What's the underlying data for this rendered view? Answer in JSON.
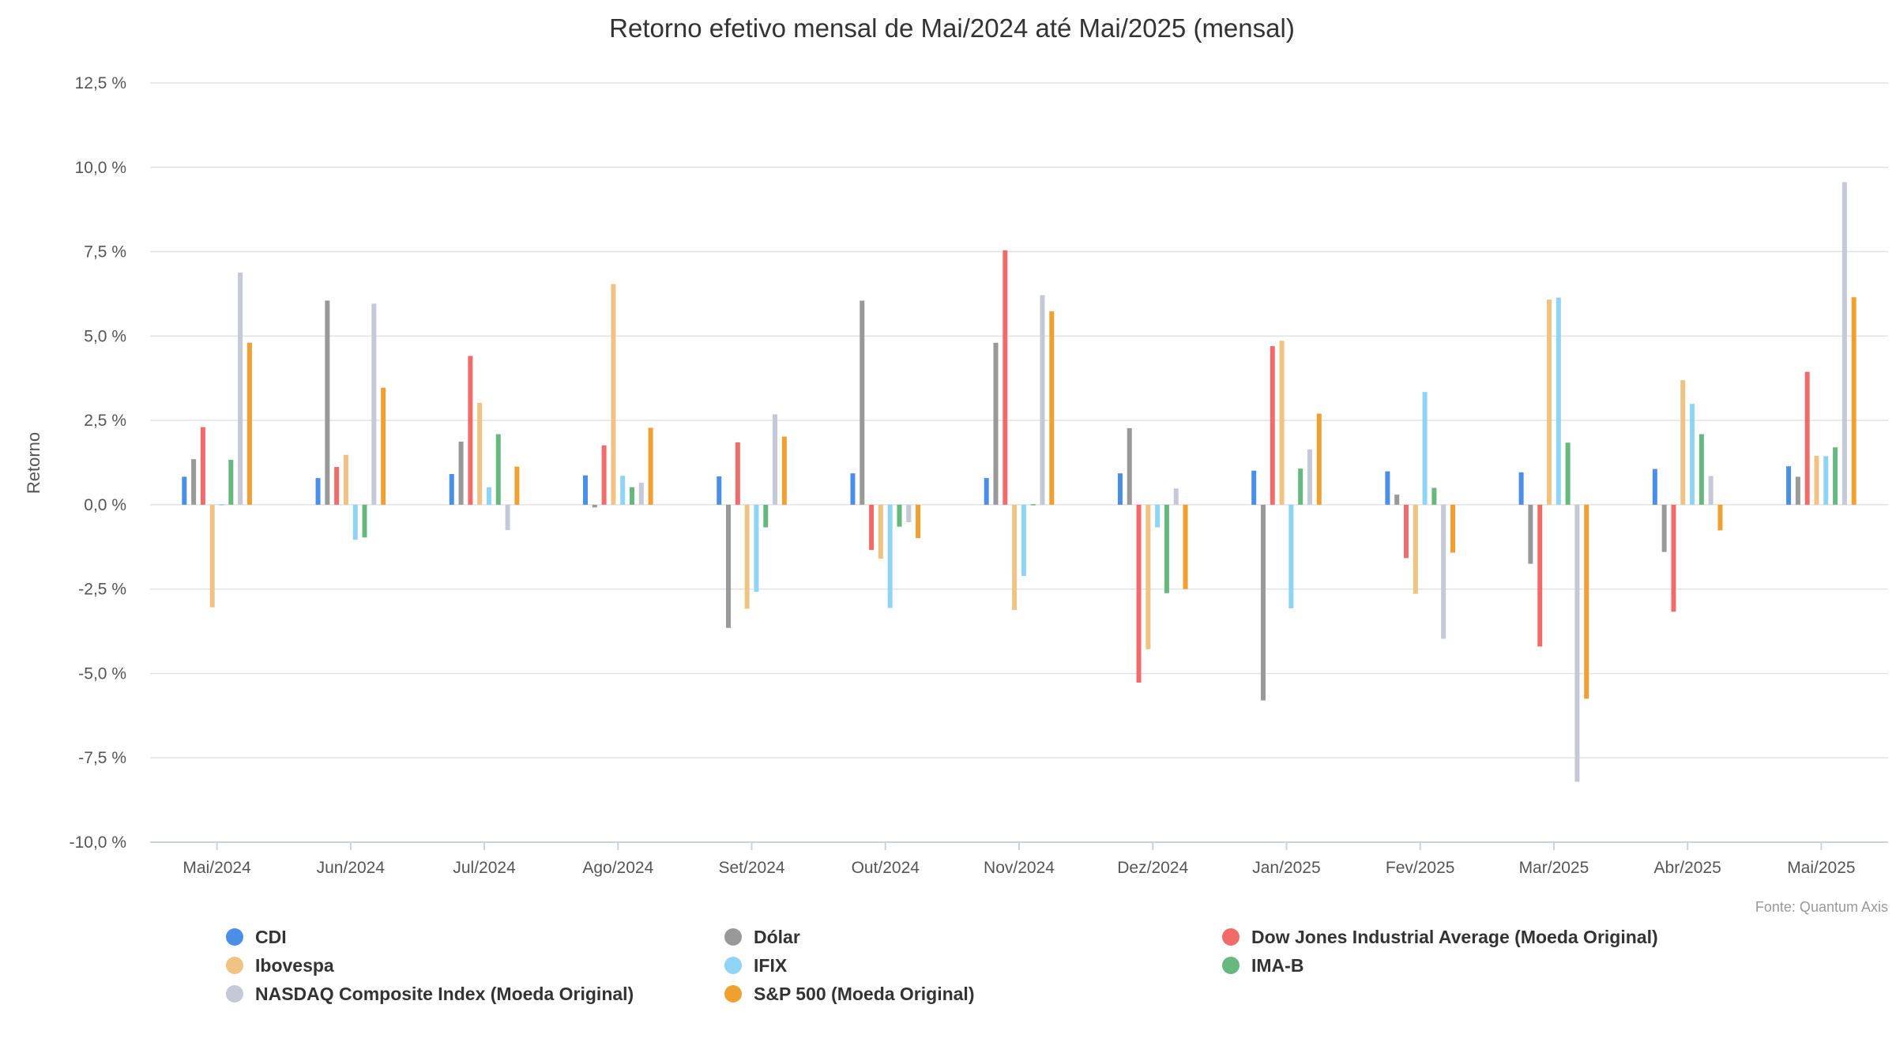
{
  "chart_data": {
    "type": "bar",
    "title": "Retorno efetivo mensal de Mai/2024 até Mai/2025 (mensal)",
    "ylabel": "Retorno",
    "xlabel": "",
    "ylim": [
      -10,
      12.5
    ],
    "yticks": [
      12.5,
      10,
      7.5,
      5,
      2.5,
      0,
      -2.5,
      -5,
      -7.5,
      -10
    ],
    "ytick_labels": [
      "12,5 %",
      "10,0 %",
      "7,5 %",
      "5,0 %",
      "2,5 %",
      "0,0 %",
      "-2,5 %",
      "-5,0 %",
      "-7,5 %",
      "-10,0 %"
    ],
    "grid": true,
    "legend_position": "bottom",
    "source": "Fonte: Quantum Axis",
    "categories": [
      "Mai/2024",
      "Jun/2024",
      "Jul/2024",
      "Ago/2024",
      "Set/2024",
      "Out/2024",
      "Nov/2024",
      "Dez/2024",
      "Jan/2025",
      "Fev/2025",
      "Mar/2025",
      "Abr/2025",
      "Mai/2025"
    ],
    "series": [
      {
        "name": "CDI",
        "color": "#4a8fe7",
        "values": [
          0.83,
          0.79,
          0.91,
          0.87,
          0.84,
          0.93,
          0.79,
          0.93,
          1.01,
          0.99,
          0.96,
          1.06,
          1.14
        ]
      },
      {
        "name": "Dólar",
        "color": "#999999",
        "values": [
          1.35,
          6.05,
          1.87,
          -0.08,
          -3.65,
          6.05,
          4.8,
          2.27,
          -5.8,
          0.3,
          -1.75,
          -1.4,
          0.83
        ]
      },
      {
        "name": "Dow Jones Industrial Average (Moeda Original)",
        "color": "#f26b6b",
        "values": [
          2.3,
          1.12,
          4.41,
          1.76,
          1.85,
          -1.34,
          7.54,
          -5.27,
          4.7,
          -1.58,
          -4.2,
          -3.17,
          3.94
        ]
      },
      {
        "name": "Ibovespa",
        "color": "#f0c283",
        "values": [
          -3.04,
          1.48,
          3.02,
          6.54,
          -3.08,
          -1.6,
          -3.12,
          -4.28,
          4.86,
          -2.64,
          6.08,
          3.69,
          1.45
        ]
      },
      {
        "name": "IFIX",
        "color": "#8fd3f5",
        "values": [
          0.0,
          -1.04,
          0.52,
          0.86,
          -2.58,
          -3.06,
          -2.11,
          -0.67,
          -3.07,
          3.34,
          6.14,
          2.99,
          1.44
        ]
      },
      {
        "name": "IMA-B",
        "color": "#66b87f",
        "values": [
          1.33,
          -0.97,
          2.09,
          0.52,
          -0.67,
          -0.65,
          0.0,
          -2.62,
          1.07,
          0.5,
          1.84,
          2.09,
          1.7
        ]
      },
      {
        "name": "NASDAQ Composite Index (Moeda Original)",
        "color": "#c5c8d6",
        "values": [
          6.88,
          5.96,
          -0.75,
          0.65,
          2.68,
          -0.52,
          6.21,
          0.48,
          1.64,
          -3.97,
          -8.21,
          0.85,
          9.56
        ]
      },
      {
        "name": "S&P 500 (Moeda Original)",
        "color": "#f0a030",
        "values": [
          4.8,
          3.47,
          1.13,
          2.28,
          2.02,
          -0.99,
          5.73,
          -2.5,
          2.7,
          -1.42,
          -5.75,
          -0.76,
          6.15
        ]
      }
    ]
  }
}
